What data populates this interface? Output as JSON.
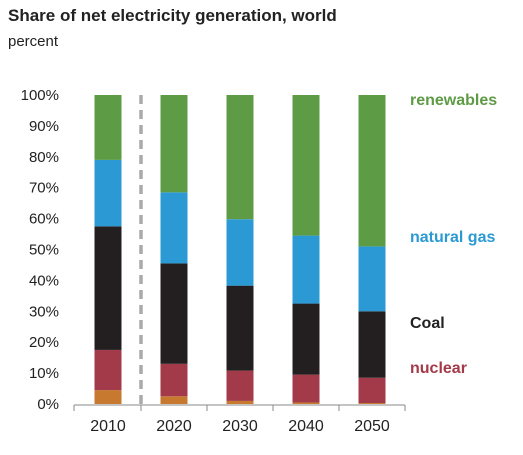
{
  "title": "Share of net electricity generation, world",
  "subtitle": "percent",
  "colors": {
    "other": "#c6792f",
    "nuclear": "#a33a49",
    "coal": "#231f20",
    "natural_gas": "#2b9ad4",
    "renewables": "#5e9b45",
    "axis": "#888888",
    "divider": "#aaaaaa"
  },
  "chart_data": {
    "type": "bar",
    "stacked": true,
    "title": "Share of net electricity generation, world",
    "subtitle": "percent",
    "categories": [
      "2010",
      "2020",
      "2030",
      "2040",
      "2050"
    ],
    "y_tick_labels": [
      "0%",
      "10%",
      "20%",
      "30%",
      "40%",
      "50%",
      "60%",
      "70%",
      "80%",
      "90%",
      "100%"
    ],
    "ylim": [
      0,
      100
    ],
    "grid": false,
    "series": [
      {
        "key": "other",
        "values": [
          4.5,
          2.5,
          1.0,
          0.5,
          0.3
        ]
      },
      {
        "key": "nuclear",
        "name": "nuclear",
        "values": [
          13,
          10.5,
          9.8,
          9.0,
          8.2
        ]
      },
      {
        "key": "coal",
        "name": "Coal",
        "values": [
          40,
          32.5,
          27.5,
          23.0,
          21.5
        ]
      },
      {
        "key": "natural_gas",
        "name": "natural gas",
        "values": [
          21.5,
          23.0,
          21.5,
          22.0,
          21.0
        ]
      },
      {
        "key": "renewables",
        "name": "renewables",
        "values": [
          21,
          31.5,
          40.2,
          45.5,
          49.0
        ]
      }
    ],
    "divider_between": [
      "2010",
      "2020"
    ]
  }
}
